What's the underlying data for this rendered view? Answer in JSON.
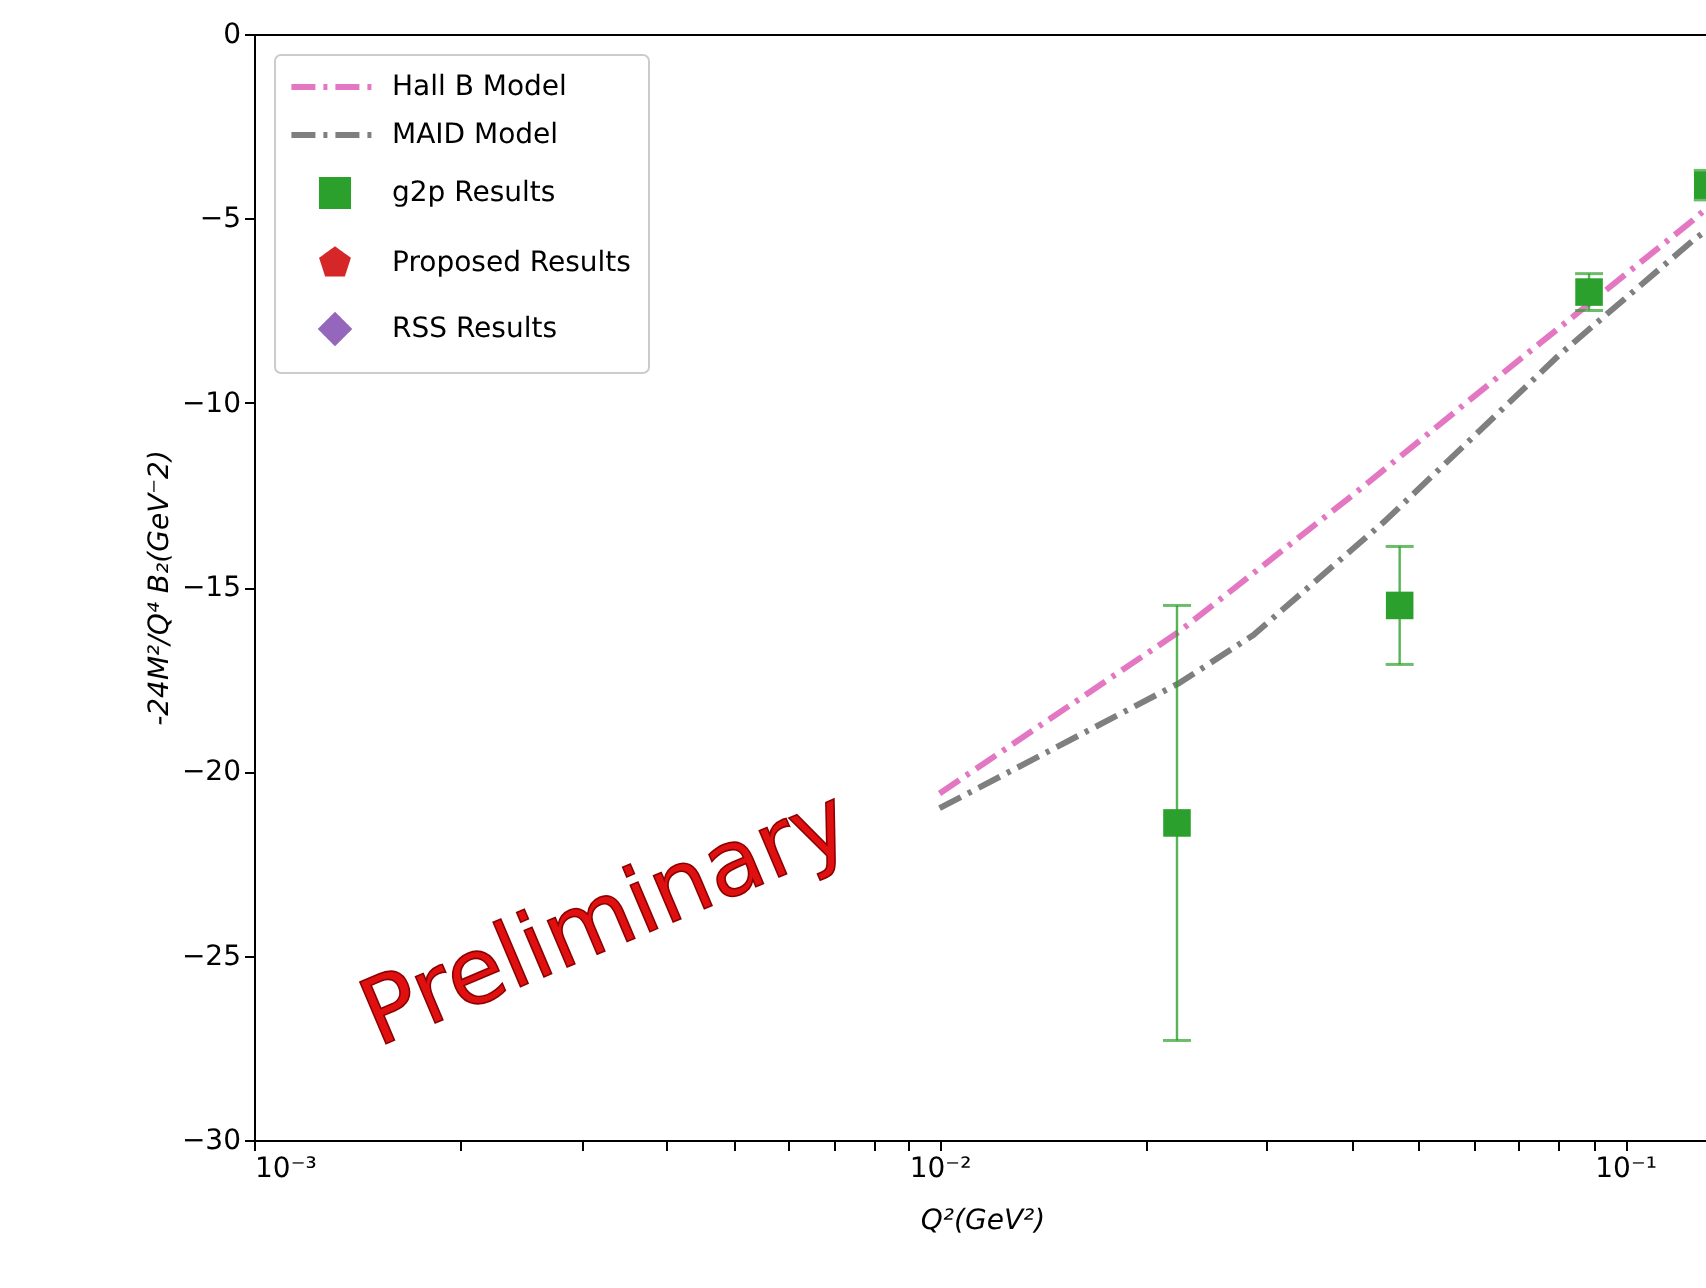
{
  "chart_data": {
    "type": "line",
    "xlabel": "Q²(GeV²)",
    "ylabel": "-24M²/Q⁴ B₂(GeV⁻2)",
    "log": "x",
    "xlim": [
      0.001,
      0.133
    ],
    "ylim": [
      -30,
      0
    ],
    "xticks": [
      {
        "value": 0.001,
        "label": "10⁻³"
      },
      {
        "value": 0.002,
        "label": null
      },
      {
        "value": 0.003,
        "label": null
      },
      {
        "value": 0.004,
        "label": null
      },
      {
        "value": 0.005,
        "label": null
      },
      {
        "value": 0.006,
        "label": null
      },
      {
        "value": 0.007,
        "label": null
      },
      {
        "value": 0.008,
        "label": null
      },
      {
        "value": 0.009,
        "label": null
      },
      {
        "value": 0.01,
        "label": "10⁻²"
      },
      {
        "value": 0.02,
        "label": null
      },
      {
        "value": 0.03,
        "label": null
      },
      {
        "value": 0.04,
        "label": null
      },
      {
        "value": 0.05,
        "label": null
      },
      {
        "value": 0.06,
        "label": null
      },
      {
        "value": 0.07,
        "label": null
      },
      {
        "value": 0.08,
        "label": null
      },
      {
        "value": 0.09,
        "label": null
      },
      {
        "value": 0.1,
        "label": "10⁻¹"
      }
    ],
    "yticks": [
      {
        "value": -30,
        "label": "−30"
      },
      {
        "value": -25,
        "label": "−25"
      },
      {
        "value": -20,
        "label": "−20"
      },
      {
        "value": -15,
        "label": "−15"
      },
      {
        "value": -10,
        "label": "−10"
      },
      {
        "value": -5,
        "label": "−5"
      },
      0
    ],
    "legend": "top left",
    "annotations": [
      "Preliminary"
    ],
    "series": [
      {
        "name": "Hall B Model",
        "line_style": "dashdot",
        "color": "#e377c2",
        "x": [
          0.01,
          0.0224,
          0.0401,
          0.0643,
          0.1256,
          0.132
        ],
        "values": [
          -20.6,
          -16.2,
          -12.5,
          -9.4,
          -5.05,
          -4.7
        ]
      },
      {
        "name": "MAID Model",
        "line_style": "dashdot",
        "color": "#7f7f7f",
        "x": [
          0.01,
          0.0224,
          0.0287,
          0.0447,
          0.0802,
          0.1256,
          0.132
        ],
        "values": [
          -21.0,
          -17.6,
          -16.3,
          -13.2,
          -8.7,
          -5.6,
          -5.3
        ]
      },
      {
        "name": "g2p Results",
        "type": "scatter",
        "marker": "square",
        "color": "#2ca02c",
        "x": [
          0.0222,
          0.0469,
          0.0886,
          0.132
        ],
        "values": [
          -21.4,
          -15.5,
          -7.0,
          -4.1
        ],
        "errors": [
          5.9,
          1.6,
          0.5,
          0.4
        ]
      },
      {
        "name": "Proposed Results",
        "type": "scatter",
        "marker": "pentagon",
        "color": "#d62728"
      },
      {
        "name": "RSS Results",
        "type": "scatter",
        "marker": "diamond",
        "color": "#9467bd"
      }
    ]
  }
}
